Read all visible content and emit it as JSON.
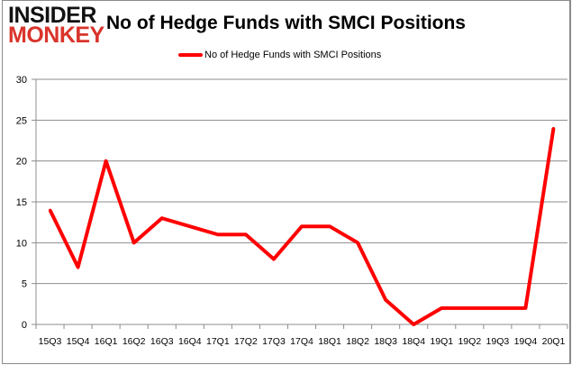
{
  "logo": {
    "line1": "INSIDER",
    "line2": "MONKEY"
  },
  "chart_data": {
    "type": "line",
    "title": "No of Hedge Funds with SMCI Positions",
    "categories": [
      "15Q3",
      "15Q4",
      "16Q1",
      "16Q2",
      "16Q3",
      "16Q4",
      "17Q1",
      "17Q2",
      "17Q3",
      "17Q4",
      "18Q1",
      "18Q2",
      "18Q3",
      "18Q4",
      "19Q1",
      "19Q2",
      "19Q3",
      "19Q4",
      "20Q1"
    ],
    "series": [
      {
        "name": "No of Hedge Funds with SMCI Positions",
        "values": [
          14,
          7,
          20,
          10,
          13,
          12,
          11,
          11,
          8,
          12,
          12,
          10,
          3,
          0,
          2,
          2,
          2,
          2,
          24
        ],
        "color": "#ff0000"
      }
    ],
    "ylim": [
      0,
      30
    ],
    "yticks": [
      0,
      5,
      10,
      15,
      20,
      25,
      30
    ],
    "xlabel": "",
    "ylabel": "",
    "grid": true,
    "legend": "top-center"
  }
}
